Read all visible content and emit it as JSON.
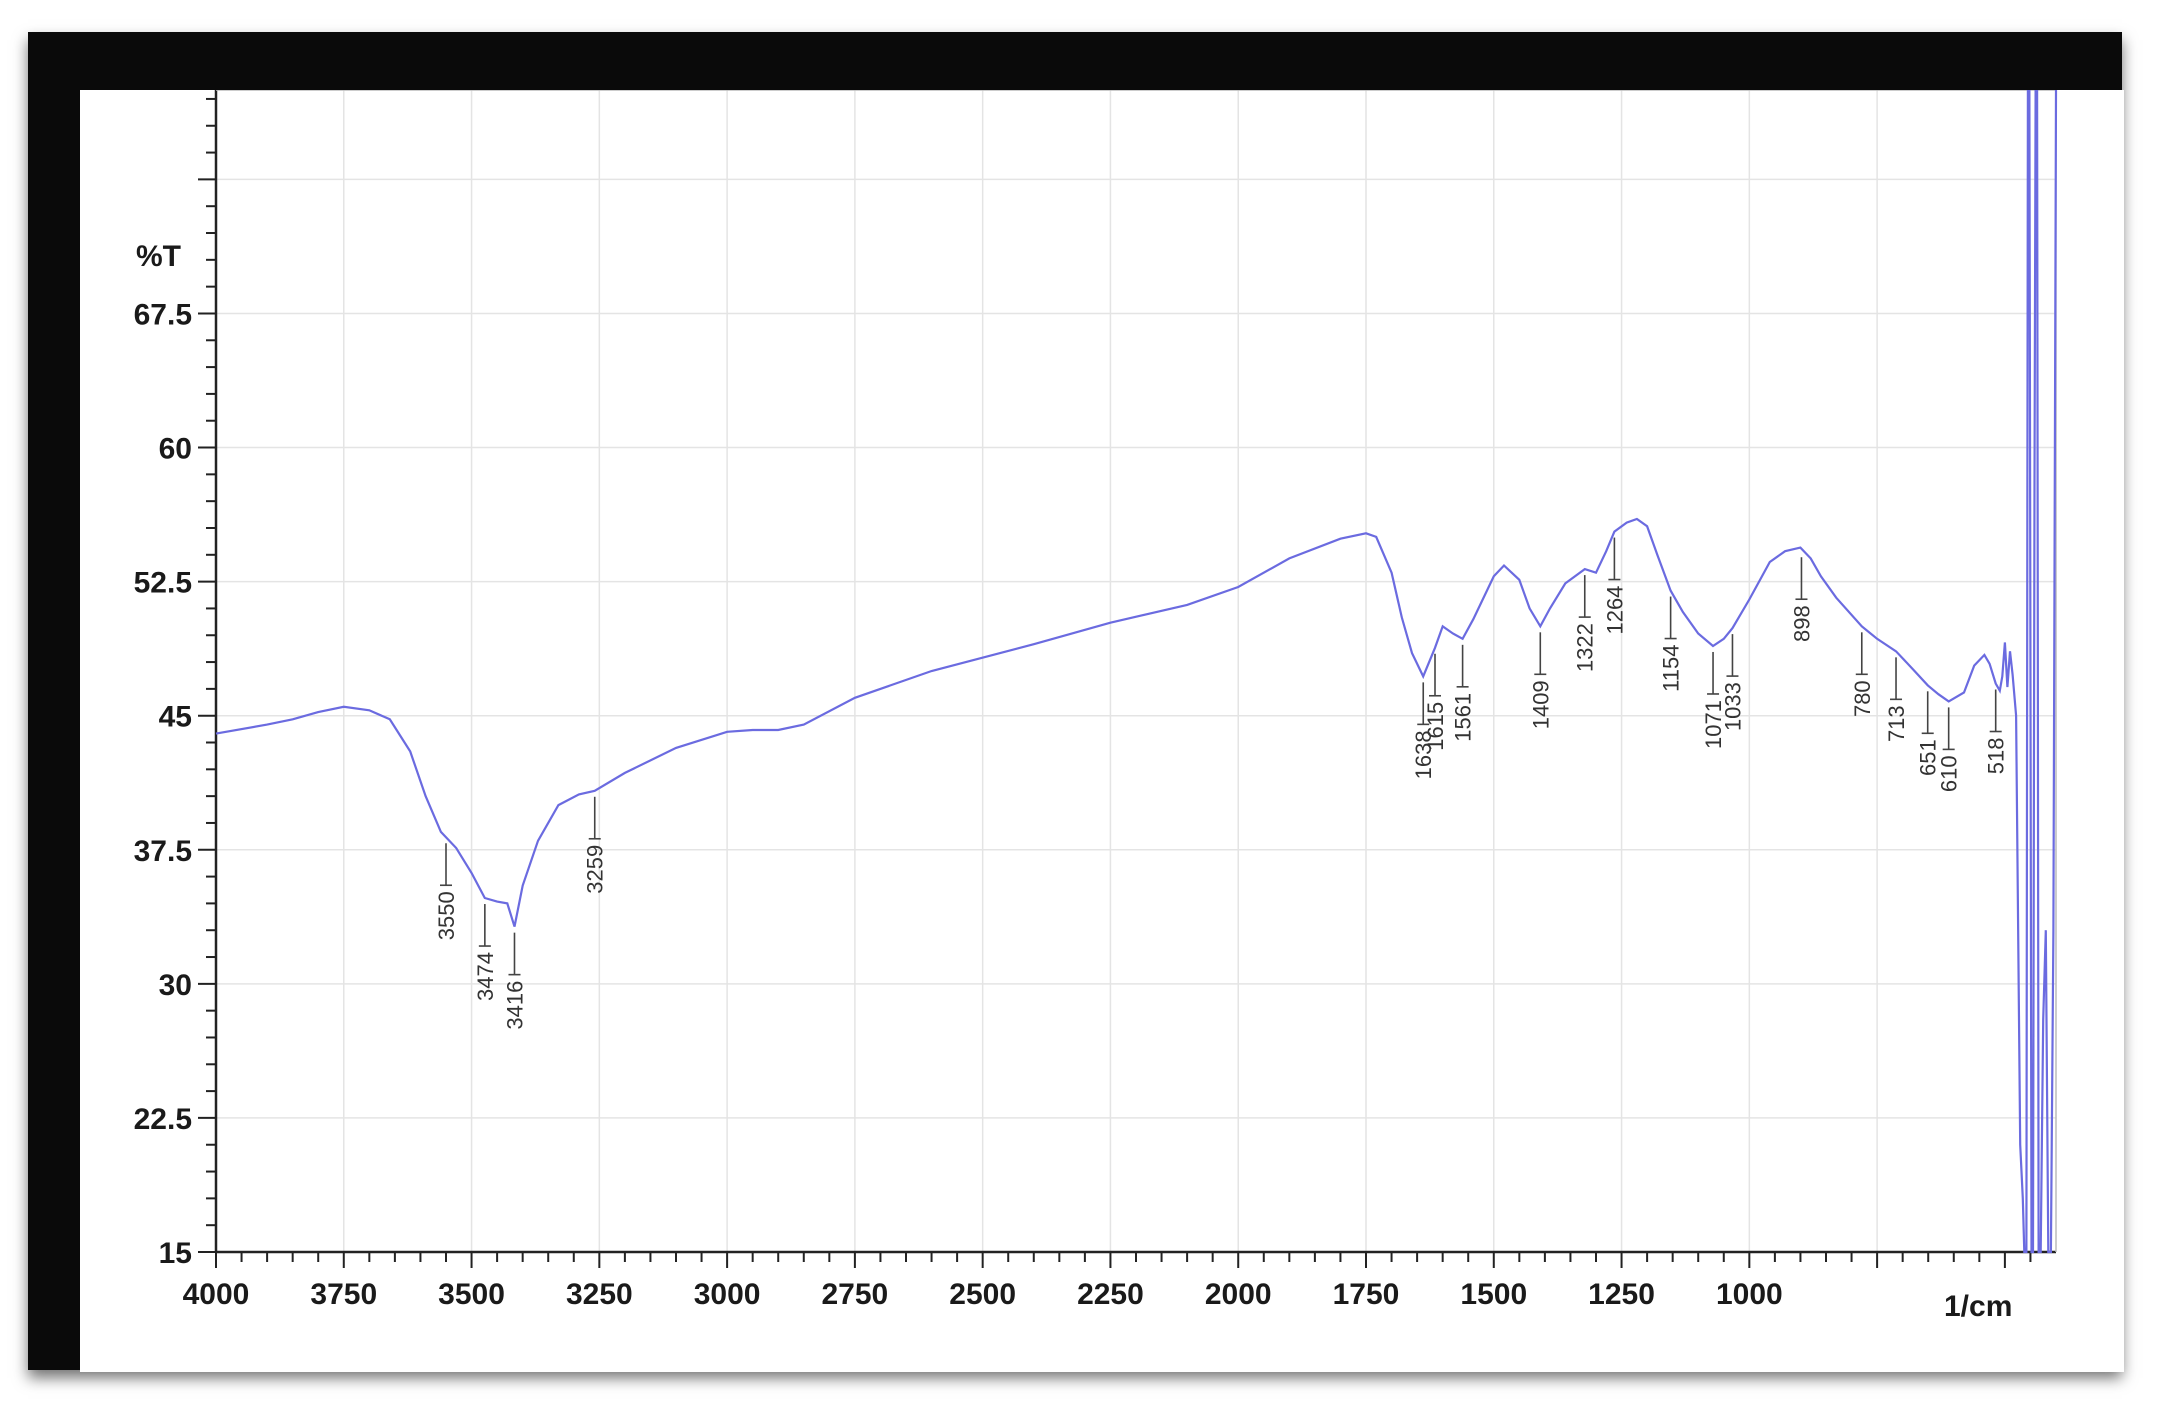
{
  "chart_data": {
    "type": "line",
    "title": "",
    "ylabel": "%T",
    "xlabel": "1/cm",
    "xlim": [
      4000,
      400
    ],
    "ylim": [
      15,
      80
    ],
    "x_ticks": [
      4000,
      3750,
      3500,
      3250,
      3000,
      2750,
      2500,
      2250,
      2000,
      1750,
      1500,
      1250,
      1000
    ],
    "x_tick_labels": [
      "4000",
      "3750",
      "3500",
      "3250",
      "3000",
      "2750",
      "2500",
      "2250",
      "2000",
      "1750",
      "1500",
      "1250",
      "1000"
    ],
    "y_ticks": [
      15,
      22.5,
      30,
      37.5,
      45,
      52.5,
      60,
      67.5
    ],
    "y_tick_labels": [
      "15",
      "22.5",
      "30",
      "37.5",
      "45",
      "52.5",
      "60",
      "67.5"
    ],
    "grid": true,
    "color": "#6b6be0",
    "series": [
      {
        "x": [
          4000,
          3900,
          3850,
          3800,
          3750,
          3700,
          3660,
          3620,
          3590,
          3560,
          3550,
          3530,
          3500,
          3474,
          3450,
          3430,
          3416,
          3400,
          3370,
          3330,
          3290,
          3259,
          3200,
          3100,
          3000,
          2950,
          2900,
          2850,
          2750,
          2600,
          2400,
          2250,
          2100,
          2000,
          1900,
          1800,
          1750,
          1730,
          1700,
          1680,
          1660,
          1638,
          1615,
          1600,
          1580,
          1561,
          1540,
          1500,
          1480,
          1450,
          1430,
          1409,
          1390,
          1360,
          1322,
          1300,
          1280,
          1264,
          1240,
          1220,
          1200,
          1180,
          1154,
          1130,
          1100,
          1071,
          1050,
          1033,
          1000,
          960,
          930,
          900,
          880,
          860,
          830,
          780,
          750,
          713,
          680,
          651,
          630,
          610,
          580,
          560,
          540,
          530,
          518,
          510,
          505,
          500,
          495,
          490,
          485,
          478,
          470,
          465,
          462,
          458,
          455,
          452,
          448,
          445,
          442,
          440,
          437,
          434,
          430,
          425,
          420,
          415,
          410,
          405,
          400
        ],
        "y": [
          44.0,
          44.5,
          44.8,
          45.2,
          45.5,
          45.3,
          44.8,
          43.0,
          40.5,
          38.5,
          38.2,
          37.6,
          36.2,
          34.8,
          34.6,
          34.5,
          33.2,
          35.5,
          38.0,
          40.0,
          40.6,
          40.8,
          41.8,
          43.2,
          44.1,
          44.2,
          44.2,
          44.5,
          46.0,
          47.5,
          49.0,
          50.2,
          51.2,
          52.2,
          53.8,
          54.9,
          55.2,
          55.0,
          53.0,
          50.5,
          48.5,
          47.2,
          48.8,
          50.0,
          49.6,
          49.3,
          50.4,
          52.8,
          53.4,
          52.6,
          51.0,
          50.0,
          51.0,
          52.4,
          53.2,
          53.0,
          54.2,
          55.3,
          55.8,
          56.0,
          55.6,
          54.0,
          52.0,
          50.8,
          49.6,
          48.9,
          49.3,
          49.9,
          51.5,
          53.6,
          54.2,
          54.4,
          53.8,
          52.8,
          51.6,
          50.0,
          49.3,
          48.6,
          47.6,
          46.7,
          46.2,
          45.8,
          46.3,
          47.8,
          48.4,
          47.9,
          46.8,
          46.4,
          47.2,
          49.1,
          46.6,
          48.6,
          47.3,
          45.0,
          21.0,
          18.0,
          15.0,
          15.0,
          80.0,
          80.0,
          15.0,
          15.0,
          58.0,
          80.0,
          80.0,
          15.0,
          15.0,
          28.0,
          33.0,
          15.0,
          15.0,
          33.0,
          80.0
        ]
      }
    ],
    "peak_labels": [
      {
        "x": 3550,
        "y": 38.2,
        "label": "3550"
      },
      {
        "x": 3474,
        "y": 34.8,
        "label": "3474"
      },
      {
        "x": 3416,
        "y": 33.2,
        "label": "3416"
      },
      {
        "x": 3259,
        "y": 40.8,
        "label": "3259"
      },
      {
        "x": 1638,
        "y": 47.2,
        "label": "1638"
      },
      {
        "x": 1615,
        "y": 48.8,
        "label": "1615"
      },
      {
        "x": 1561,
        "y": 49.3,
        "label": "1561"
      },
      {
        "x": 1409,
        "y": 50.0,
        "label": "1409"
      },
      {
        "x": 1322,
        "y": 53.2,
        "label": "1322"
      },
      {
        "x": 1264,
        "y": 55.3,
        "label": "1264"
      },
      {
        "x": 1154,
        "y": 52.0,
        "label": "1154"
      },
      {
        "x": 1071,
        "y": 48.9,
        "label": "1071"
      },
      {
        "x": 1033,
        "y": 49.9,
        "label": "1033"
      },
      {
        "x": 898,
        "y": 54.2,
        "label": "898"
      },
      {
        "x": 780,
        "y": 50.0,
        "label": "780"
      },
      {
        "x": 713,
        "y": 48.6,
        "label": "713"
      },
      {
        "x": 651,
        "y": 46.7,
        "label": "651"
      },
      {
        "x": 610,
        "y": 45.8,
        "label": "610"
      },
      {
        "x": 518,
        "y": 46.8,
        "label": "518"
      }
    ]
  }
}
